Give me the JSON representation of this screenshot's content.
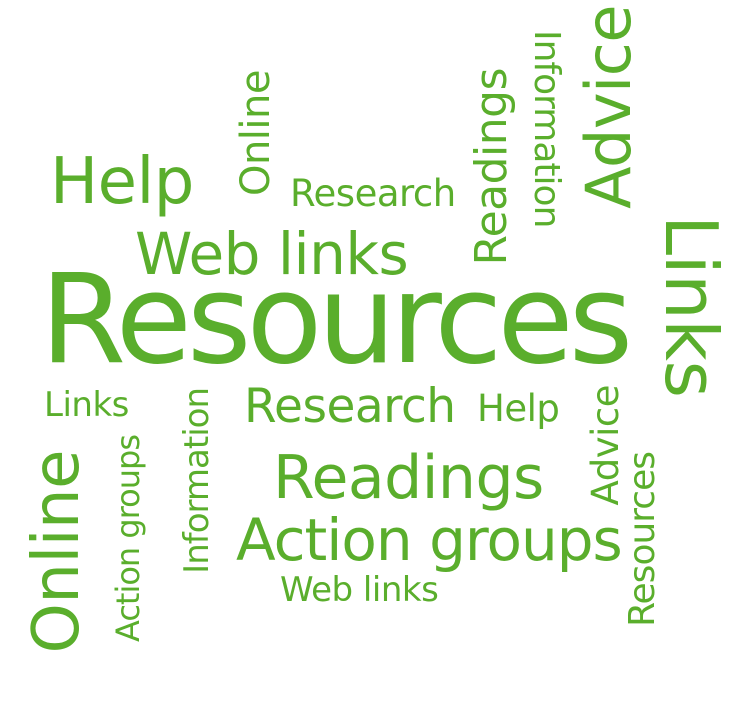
{
  "colors": {
    "word": "#5aae2c",
    "background": "#ffffff"
  },
  "words": [
    {
      "text": "Help"
    },
    {
      "text": "Online"
    },
    {
      "text": "Research"
    },
    {
      "text": "Web links"
    },
    {
      "text": "Readings"
    },
    {
      "text": "Information"
    },
    {
      "text": "Advice"
    },
    {
      "text": "Resources"
    },
    {
      "text": "Links"
    },
    {
      "text": "Links"
    },
    {
      "text": "Research"
    },
    {
      "text": "Help"
    },
    {
      "text": "Online"
    },
    {
      "text": "Action groups"
    },
    {
      "text": "Information"
    },
    {
      "text": "Readings"
    },
    {
      "text": "Action groups"
    },
    {
      "text": "Web links"
    },
    {
      "text": "Advice"
    },
    {
      "text": "Resources"
    }
  ]
}
